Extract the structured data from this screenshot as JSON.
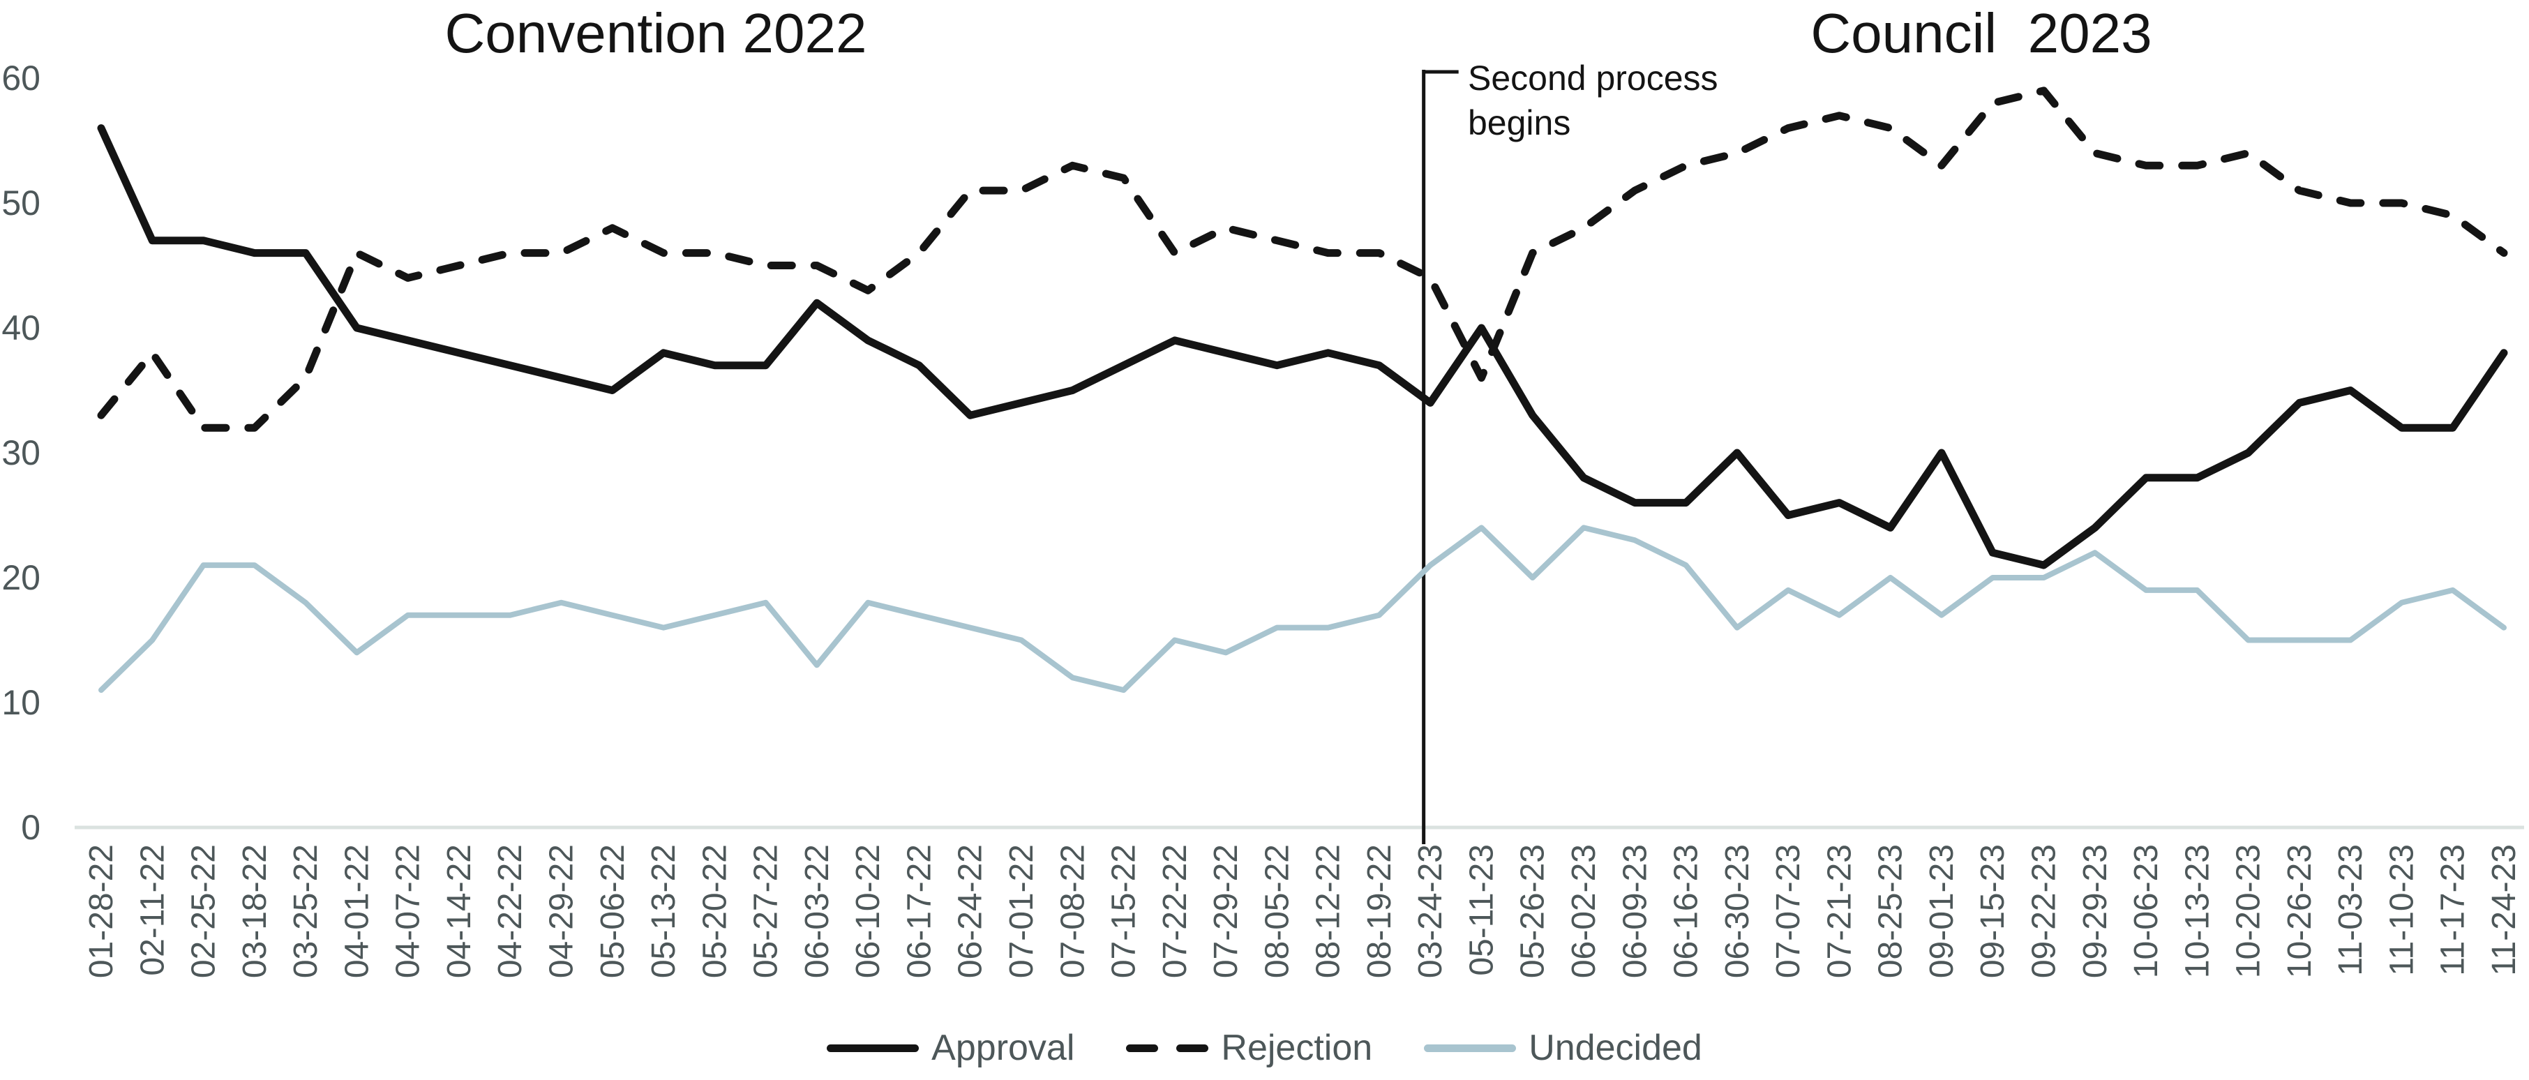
{
  "chart_data": {
    "type": "line",
    "title_left": "Convention 2022",
    "title_right": "Council  2023",
    "annotation": {
      "line1": "Second process",
      "line2": "begins",
      "x_index": 25.87,
      "marks_category": "03-24-23"
    },
    "categories": [
      "01-28-22",
      "02-11-22",
      "02-25-22",
      "03-18-22",
      "03-25-22",
      "04-01-22",
      "04-07-22",
      "04-14-22",
      "04-22-22",
      "04-29-22",
      "05-06-22",
      "05-13-22",
      "05-20-22",
      "05-27-22",
      "06-03-22",
      "06-10-22",
      "06-17-22",
      "06-24-22",
      "07-01-22",
      "07-08-22",
      "07-15-22",
      "07-22-22",
      "07-29-22",
      "08-05-22",
      "08-12-22",
      "08-19-22",
      "03-24-23",
      "05-11-23",
      "05-26-23",
      "06-02-23",
      "06-09-23",
      "06-16-23",
      "06-30-23",
      "07-07-23",
      "07-21-23",
      "08-25-23",
      "09-01-23",
      "09-15-23",
      "09-22-23",
      "09-29-23",
      "10-06-23",
      "10-13-23",
      "10-20-23",
      "10-26-23",
      "11-03-23",
      "11-10-23",
      "11-17-23",
      "11-24-23"
    ],
    "series": [
      {
        "name": "Approval",
        "style": "solid",
        "color": "#141414",
        "values": [
          56,
          47,
          47,
          46,
          46,
          40,
          39,
          38,
          37,
          36,
          35,
          38,
          37,
          37,
          42,
          39,
          37,
          33,
          34,
          35,
          37,
          39,
          38,
          37,
          38,
          37,
          34,
          40,
          33,
          28,
          26,
          26,
          30,
          25,
          26,
          24,
          30,
          22,
          21,
          24,
          28,
          28,
          30,
          34,
          35,
          32,
          32,
          38
        ]
      },
      {
        "name": "Rejection",
        "style": "dashed",
        "color": "#141414",
        "values": [
          33,
          38,
          32,
          32,
          36,
          46,
          44,
          45,
          46,
          46,
          48,
          46,
          46,
          45,
          45,
          43,
          46,
          51,
          51,
          53,
          52,
          46,
          48,
          47,
          46,
          46,
          44,
          36,
          46,
          48,
          51,
          53,
          54,
          56,
          57,
          56,
          53,
          58,
          59,
          54,
          53,
          53,
          54,
          51,
          50,
          50,
          49,
          46
        ]
      },
      {
        "name": "Undecided",
        "style": "solid",
        "color": "#a8c4cf",
        "values": [
          11,
          15,
          21,
          21,
          18,
          14,
          17,
          17,
          17,
          18,
          17,
          16,
          17,
          18,
          13,
          18,
          17,
          16,
          15,
          12,
          11,
          15,
          14,
          16,
          16,
          17,
          21,
          24,
          20,
          24,
          23,
          21,
          16,
          19,
          17,
          20,
          17,
          20,
          20,
          22,
          19,
          19,
          15,
          15,
          15,
          18,
          19,
          16
        ]
      }
    ],
    "ylim": [
      0,
      60
    ],
    "yticks": [
      0,
      10,
      20,
      30,
      40,
      50,
      60
    ],
    "xlabel": "",
    "ylabel": "",
    "grid": false,
    "legend_position": "bottom-center",
    "colors": {
      "line_black": "#141414",
      "undecided_blue": "#a8c4cf",
      "tick_text": "#4d5759",
      "axis_line": "#dbe2e0"
    }
  }
}
